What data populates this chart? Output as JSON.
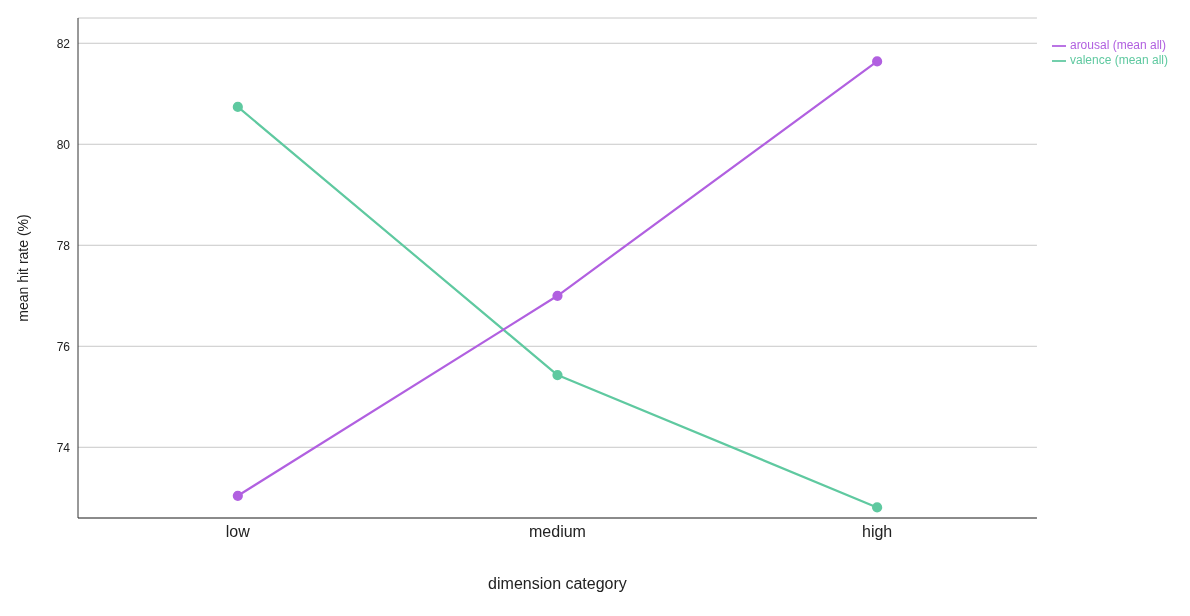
{
  "chart_data": {
    "type": "line",
    "xlabel": "dimension category",
    "ylabel": "mean hit rate (%)",
    "categories": [
      "low",
      "medium",
      "high"
    ],
    "series": [
      {
        "name": "valence (mean all)",
        "color": "#5fc9a0",
        "values": [
          80.74,
          75.43,
          72.81
        ]
      },
      {
        "name": "arousal (mean all)",
        "color": "#b160e0",
        "values": [
          73.04,
          77.0,
          81.64
        ]
      }
    ],
    "ylim": [
      72.6,
      82.5
    ],
    "yticks": [
      74,
      76,
      78,
      80,
      82
    ],
    "grid": "y",
    "legend": "right",
    "marker": "circle",
    "line_style": "solid"
  }
}
